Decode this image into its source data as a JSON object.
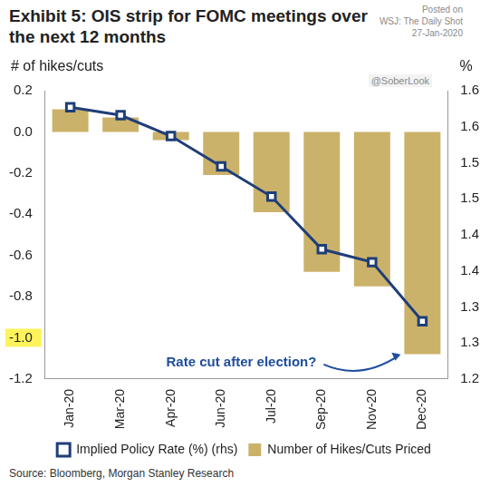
{
  "chart_data": {
    "type": "bar",
    "title": "Exhibit 5: OIS strip for FOMC meetings over the next 12 months",
    "y_label": "# of hikes/cuts",
    "y2_label": "%",
    "categories": [
      "Jan-20",
      "Mar-20",
      "Apr-20",
      "Jun-20",
      "Jul-20",
      "Sep-20",
      "Nov-20",
      "Dec-20"
    ],
    "series": [
      {
        "name": "Number of Hikes/Cuts Priced",
        "type": "bar",
        "color": "#cbb26a",
        "values": [
          0.11,
          0.07,
          -0.04,
          -0.21,
          -0.39,
          -0.68,
          -0.75,
          -1.08
        ]
      },
      {
        "name": "Implied Policy Rate (%) (rhs)",
        "type": "line",
        "axis": "y2",
        "color": "#1f3e78",
        "marker": "square",
        "values": [
          1.577,
          1.566,
          1.537,
          1.495,
          1.453,
          1.38,
          1.362,
          1.28
        ]
      }
    ],
    "ylim": [
      -1.2,
      0.2
    ],
    "yticks": [
      -1.2,
      {
        "value": -1.0,
        "label": "-1.0"
      },
      -0.8,
      -0.6,
      -0.4,
      -0.2,
      {
        "value": 0,
        "label": "0.0"
      },
      0.2
    ],
    "y2lim": [
      1.2,
      1.6
    ],
    "y2ticks": [
      1.2,
      {
        "value": 1.25,
        "label": "1.3"
      },
      1.3,
      {
        "value": 1.35,
        "label": "1.4"
      },
      1.4,
      {
        "value": 1.45,
        "label": "1.5"
      },
      1.5,
      {
        "value": 1.55,
        "label": "1.6"
      },
      1.6
    ],
    "grid": false,
    "legend": "bottom",
    "annotations": [
      "Rate cut after election?"
    ],
    "watermark": [
      "Posted on",
      "WSJ: The Daily Shot",
      "27-Jan-2020",
      "@SoberLook"
    ],
    "source": "Source: Bloomberg, Morgan Stanley Research"
  }
}
